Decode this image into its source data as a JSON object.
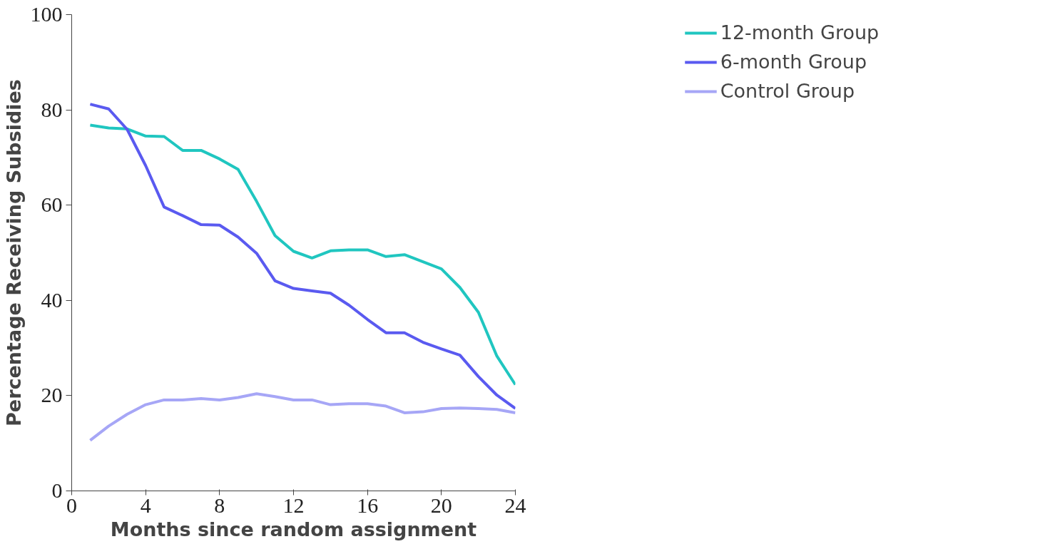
{
  "chart_data": {
    "type": "line",
    "xlabel": "Months since random assignment",
    "ylabel": "Percentage Receiving Subsidies",
    "x": [
      1,
      2,
      3,
      4,
      5,
      6,
      7,
      8,
      9,
      10,
      11,
      12,
      13,
      14,
      15,
      16,
      17,
      18,
      19,
      20,
      21,
      22,
      23,
      24
    ],
    "series": [
      {
        "name": "12-month Group",
        "color": "#20c6c0",
        "values": [
          76.8,
          76.2,
          76.0,
          74.5,
          74.4,
          71.5,
          71.5,
          69.7,
          67.5,
          60.8,
          53.6,
          50.3,
          48.9,
          50.4,
          50.6,
          50.6,
          49.2,
          49.6,
          48.1,
          46.6,
          42.7,
          37.5,
          28.3,
          22.3
        ]
      },
      {
        "name": "6-month Group",
        "color": "#5a5af0",
        "values": [
          81.2,
          80.2,
          75.9,
          68.3,
          59.6,
          57.8,
          55.9,
          55.8,
          53.3,
          49.9,
          44.1,
          42.5,
          42.0,
          41.5,
          39.0,
          36.0,
          33.2,
          33.2,
          31.2,
          29.8,
          28.5,
          24.0,
          20.1,
          17.3
        ]
      },
      {
        "name": "Control Group",
        "color": "#a6a6f6",
        "values": [
          10.6,
          13.6,
          16.1,
          18.1,
          19.1,
          19.1,
          19.4,
          19.1,
          19.6,
          20.4,
          19.8,
          19.1,
          19.1,
          18.1,
          18.3,
          18.3,
          17.8,
          16.4,
          16.6,
          17.3,
          17.4,
          17.3,
          17.1,
          16.4
        ]
      }
    ],
    "xlim": [
      0,
      24
    ],
    "ylim": [
      0,
      100
    ],
    "xticks": [
      0,
      4,
      8,
      12,
      16,
      20,
      24
    ],
    "yticks": [
      0,
      20,
      40,
      60,
      80,
      100
    ],
    "grid": false,
    "legend": "top right",
    "marker": "none",
    "line_style": "solid"
  }
}
